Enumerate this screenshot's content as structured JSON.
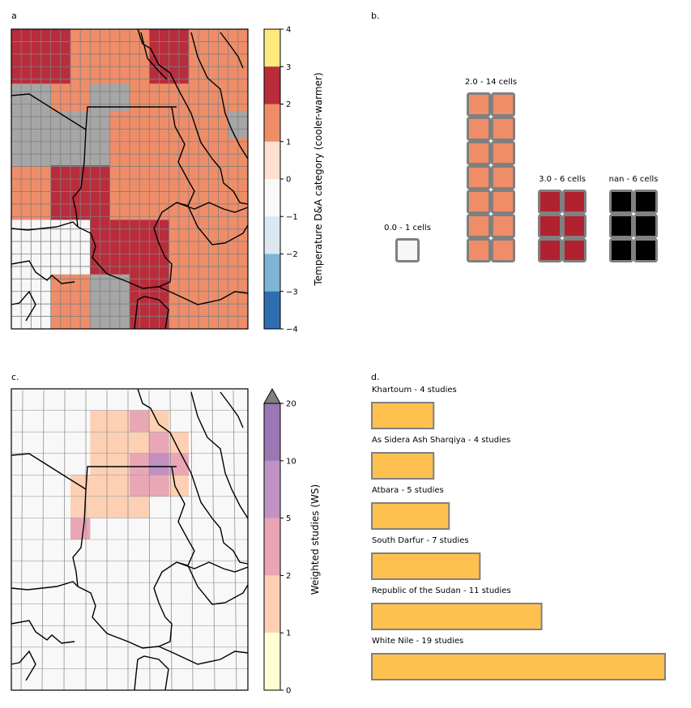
{
  "panels": {
    "a": {
      "label": "a",
      "grid_colors": [
        [
          "#b92c3c",
          "#b92c3c",
          "#b92c3c",
          "#ef8d68",
          "#ef8d68",
          "#ef8d68",
          "#ef8d68",
          "#b92c3c",
          "#b92c3c",
          "#ef8d68",
          "#ef8d68",
          "#ef8d68"
        ],
        [
          "#b92c3c",
          "#b92c3c",
          "#b92c3c",
          "#ef8d68",
          "#ef8d68",
          "#ef8d68",
          "#ef8d68",
          "#b92c3c",
          "#b92c3c",
          "#ef8d68",
          "#ef8d68",
          "#ef8d68"
        ],
        [
          "#a6a6a6",
          "#a6a6a6",
          "#ef8d68",
          "#ef8d68",
          "#a6a6a6",
          "#a6a6a6",
          "#ef8d68",
          "#ef8d68",
          "#ef8d68",
          "#ef8d68",
          "#ef8d68",
          "#ef8d68"
        ],
        [
          "#a6a6a6",
          "#a6a6a6",
          "#a6a6a6",
          "#a6a6a6",
          "#a6a6a6",
          "#ef8d68",
          "#ef8d68",
          "#ef8d68",
          "#ef8d68",
          "#ef8d68",
          "#ef8d68",
          "#a6a6a6"
        ],
        [
          "#a6a6a6",
          "#a6a6a6",
          "#a6a6a6",
          "#a6a6a6",
          "#a6a6a6",
          "#ef8d68",
          "#ef8d68",
          "#ef8d68",
          "#ef8d68",
          "#ef8d68",
          "#ef8d68",
          "#ef8d68"
        ],
        [
          "#ef8d68",
          "#ef8d68",
          "#b92c3c",
          "#b92c3c",
          "#b92c3c",
          "#ef8d68",
          "#ef8d68",
          "#ef8d68",
          "#ef8d68",
          "#ef8d68",
          "#ef8d68",
          "#ef8d68"
        ],
        [
          "#ef8d68",
          "#ef8d68",
          "#b92c3c",
          "#b92c3c",
          "#b92c3c",
          "#ef8d68",
          "#ef8d68",
          "#ef8d68",
          "#ef8d68",
          "#ef8d68",
          "#ef8d68",
          "#ef8d68"
        ],
        [
          "#f7f7f7",
          "#f7f7f7",
          "#f7f7f7",
          "#f7f7f7",
          "#b92c3c",
          "#b92c3c",
          "#b92c3c",
          "#b92c3c",
          "#ef8d68",
          "#ef8d68",
          "#ef8d68",
          "#ef8d68"
        ],
        [
          "#f7f7f7",
          "#f7f7f7",
          "#f7f7f7",
          "#f7f7f7",
          "#b92c3c",
          "#b92c3c",
          "#b92c3c",
          "#b92c3c",
          "#ef8d68",
          "#ef8d68",
          "#ef8d68",
          "#ef8d68"
        ],
        [
          "#f7f7f7",
          "#f7f7f7",
          "#ef8d68",
          "#ef8d68",
          "#a6a6a6",
          "#a6a6a6",
          "#b92c3c",
          "#b92c3c",
          "#ef8d68",
          "#ef8d68",
          "#ef8d68",
          "#ef8d68"
        ],
        [
          "#f7f7f7",
          "#f7f7f7",
          "#ef8d68",
          "#ef8d68",
          "#a6a6a6",
          "#a6a6a6",
          "#b92c3c",
          "#b92c3c",
          "#ef8d68",
          "#ef8d68",
          "#ef8d68",
          "#ef8d68"
        ]
      ],
      "colorbar": {
        "label": "Temperature D&A category (cooler-warmer)",
        "ticks": [
          "4",
          "3",
          "2",
          "1",
          "0",
          "−1",
          "−2",
          "−3",
          "−4"
        ],
        "colors": [
          "#fde97e",
          "#b92c3c",
          "#ef8d68",
          "#fde0cf",
          "#f8f8f8",
          "#dbe8f1",
          "#7db5d6",
          "#2e6eb0",
          "#52186a"
        ]
      }
    },
    "b": {
      "label": "b.",
      "groups": [
        {
          "label": "0.0 - 1 cells",
          "color": "#f7f7f7"
        },
        {
          "label": "2.0 - 14 cells",
          "color": "#ef8d68"
        },
        {
          "label": "3.0 - 6 cells",
          "color": "#b0222f"
        },
        {
          "label": "nan - 6 cells",
          "color": "#000000"
        }
      ]
    },
    "c": {
      "label": "c.",
      "grid_colors": [
        [
          "#f8f8f8",
          "#f8f8f8",
          "#f8f8f8",
          "#f8f8f8",
          "#f8f8f8",
          "#f8f8f8",
          "#f8f8f8",
          "#f8f8f8",
          "#f8f8f8",
          "#f8f8f8",
          "#f8f8f8",
          "#f8f8f8"
        ],
        [
          "#f8f8f8",
          "#f8f8f8",
          "#f8f8f8",
          "#f8f8f8",
          "#fdd0b3",
          "#fdd0b3",
          "#e9a7b6",
          "#fdd0b3",
          "#f8f8f8",
          "#f8f8f8",
          "#f8f8f8",
          "#f8f8f8"
        ],
        [
          "#f8f8f8",
          "#f8f8f8",
          "#f8f8f8",
          "#f8f8f8",
          "#fdd0b3",
          "#fdd0b3",
          "#fdd0b3",
          "#e9a7b6",
          "#fdd0b3",
          "#f8f8f8",
          "#f8f8f8",
          "#f8f8f8"
        ],
        [
          "#f8f8f8",
          "#f8f8f8",
          "#f8f8f8",
          "#f8f8f8",
          "#fdd0b3",
          "#fdd0b3",
          "#e9a7b6",
          "#c090c2",
          "#e9a7b6",
          "#f8f8f8",
          "#f8f8f8",
          "#f8f8f8"
        ],
        [
          "#f8f8f8",
          "#f8f8f8",
          "#f8f8f8",
          "#fdd0b3",
          "#fdd0b3",
          "#fdd0b3",
          "#e9a7b6",
          "#e9a7b6",
          "#fdd0b3",
          "#f8f8f8",
          "#f8f8f8",
          "#f8f8f8"
        ],
        [
          "#f8f8f8",
          "#f8f8f8",
          "#f8f8f8",
          "#fdd0b3",
          "#fdd0b3",
          "#fdd0b3",
          "#fdd0b3",
          "#f8f8f8",
          "#f8f8f8",
          "#f8f8f8",
          "#f8f8f8",
          "#f8f8f8"
        ],
        [
          "#f8f8f8",
          "#f8f8f8",
          "#f8f8f8",
          "#e9a7b6",
          "#f8f8f8",
          "#f8f8f8",
          "#f8f8f8",
          "#f8f8f8",
          "#f8f8f8",
          "#f8f8f8",
          "#f8f8f8",
          "#f8f8f8"
        ],
        [
          "#f8f8f8",
          "#f8f8f8",
          "#f8f8f8",
          "#f8f8f8",
          "#f8f8f8",
          "#f8f8f8",
          "#f8f8f8",
          "#f8f8f8",
          "#f8f8f8",
          "#f8f8f8",
          "#f8f8f8",
          "#f8f8f8"
        ],
        [
          "#f8f8f8",
          "#f8f8f8",
          "#f8f8f8",
          "#f8f8f8",
          "#f8f8f8",
          "#f8f8f8",
          "#f8f8f8",
          "#f8f8f8",
          "#f8f8f8",
          "#f8f8f8",
          "#f8f8f8",
          "#f8f8f8"
        ],
        [
          "#f8f8f8",
          "#f8f8f8",
          "#f8f8f8",
          "#f8f8f8",
          "#f8f8f8",
          "#f8f8f8",
          "#f8f8f8",
          "#f8f8f8",
          "#f8f8f8",
          "#f8f8f8",
          "#f8f8f8",
          "#f8f8f8"
        ],
        [
          "#f8f8f8",
          "#f8f8f8",
          "#f8f8f8",
          "#f8f8f8",
          "#f8f8f8",
          "#f8f8f8",
          "#f8f8f8",
          "#f8f8f8",
          "#f8f8f8",
          "#f8f8f8",
          "#f8f8f8",
          "#f8f8f8"
        ],
        [
          "#f8f8f8",
          "#f8f8f8",
          "#f8f8f8",
          "#f8f8f8",
          "#f8f8f8",
          "#f8f8f8",
          "#f8f8f8",
          "#f8f8f8",
          "#f8f8f8",
          "#f8f8f8",
          "#f8f8f8",
          "#f8f8f8"
        ],
        [
          "#f8f8f8",
          "#f8f8f8",
          "#f8f8f8",
          "#f8f8f8",
          "#f8f8f8",
          "#f8f8f8",
          "#f8f8f8",
          "#f8f8f8",
          "#f8f8f8",
          "#f8f8f8",
          "#f8f8f8",
          "#f8f8f8"
        ],
        [
          "#f8f8f8",
          "#f8f8f8",
          "#f8f8f8",
          "#f8f8f8",
          "#f8f8f8",
          "#f8f8f8",
          "#f8f8f8",
          "#f8f8f8",
          "#f8f8f8",
          "#f8f8f8",
          "#f8f8f8",
          "#f8f8f8"
        ]
      ],
      "colorbar": {
        "label": "Weighted studies (WS)",
        "ticks": [
          "20",
          "10",
          "5",
          "2",
          "1",
          "0"
        ],
        "colors": [
          "#9b77b4",
          "#c193c4",
          "#e9a4b6",
          "#fdd0b3",
          "#ffffd4"
        ],
        "extend_color": "#808080"
      }
    },
    "d": {
      "label": "d."
    }
  },
  "chart_data": [
    {
      "type": "heatmap",
      "panel": "a",
      "colorbar_label": "Temperature D&A category (cooler-warmer)",
      "colorbar_range": [
        -4,
        4
      ],
      "colorbar_ticks": [
        -4,
        -3,
        -2,
        -1,
        0,
        1,
        2,
        3,
        4
      ]
    },
    {
      "type": "bar",
      "panel": "b",
      "categories": [
        "0.0",
        "2.0",
        "3.0",
        "nan"
      ],
      "values": [
        1,
        14,
        6,
        6
      ],
      "labels": [
        "0.0 - 1 cells",
        "2.0 - 14 cells",
        "3.0 - 6 cells",
        "nan - 6 cells"
      ]
    },
    {
      "type": "heatmap",
      "panel": "c",
      "colorbar_label": "Weighted studies (WS)",
      "colorbar_ticks": [
        0,
        1,
        2,
        5,
        10,
        20
      ]
    },
    {
      "type": "bar",
      "panel": "d",
      "orientation": "horizontal",
      "categories": [
        "Khartoum",
        "As Sidera Ash Sharqiya",
        "Atbara",
        "South Darfur",
        "Republic of the Sudan",
        "White Nile"
      ],
      "values": [
        4,
        4,
        5,
        7,
        11,
        19
      ],
      "labels": [
        "Khartoum - 4 studies",
        "As Sidera Ash Sharqiya - 4 studies",
        "Atbara - 5 studies",
        "South Darfur - 7 studies",
        "Republic of the Sudan - 11 studies",
        "White Nile - 19 studies"
      ],
      "bar_color": "#fec14f"
    }
  ]
}
